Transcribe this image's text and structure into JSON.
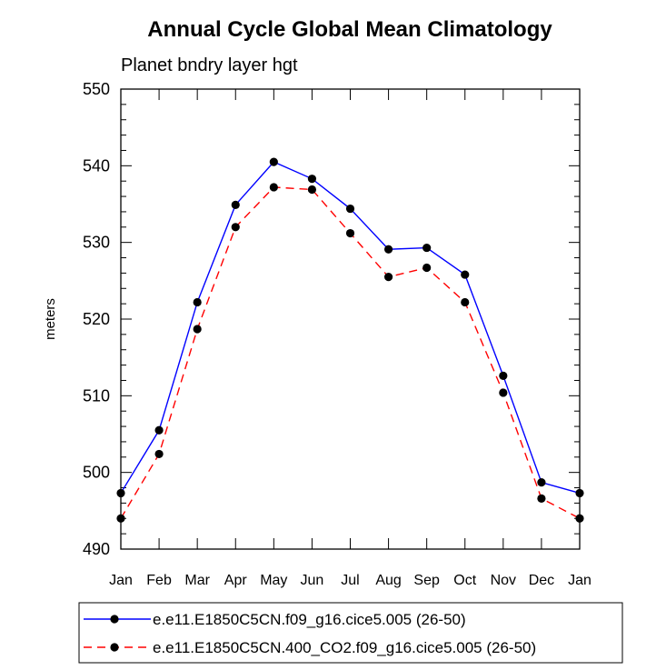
{
  "chart_data": {
    "type": "line",
    "title": "Annual Cycle Global Mean Climatology",
    "subtitle": "Planet bndry layer hgt",
    "xlabel": "",
    "ylabel": "meters",
    "categories": [
      "Jan",
      "Feb",
      "Mar",
      "Apr",
      "May",
      "Jun",
      "Jul",
      "Aug",
      "Sep",
      "Oct",
      "Nov",
      "Dec",
      "Jan"
    ],
    "ylim": [
      490,
      550
    ],
    "yticks": [
      490,
      500,
      510,
      520,
      530,
      540,
      550
    ],
    "grid": false,
    "legend_position": "bottom",
    "series": [
      {
        "name": "e.e11.E1850C5CN.f09_g16.cice5.005 (26-50)",
        "color": "#0000ff",
        "dash": "solid",
        "values": [
          497.3,
          505.5,
          522.2,
          534.9,
          540.5,
          538.3,
          534.4,
          529.1,
          529.3,
          525.8,
          512.6,
          498.7,
          497.3
        ]
      },
      {
        "name": "e.e11.E1850C5CN.400_CO2.f09_g16.cice5.005 (26-50)",
        "color": "#ff0000",
        "dash": "dashed",
        "values": [
          494.0,
          502.4,
          518.7,
          532.0,
          537.2,
          536.9,
          531.2,
          525.5,
          526.7,
          522.2,
          510.4,
          496.6,
          494.0
        ]
      }
    ]
  }
}
